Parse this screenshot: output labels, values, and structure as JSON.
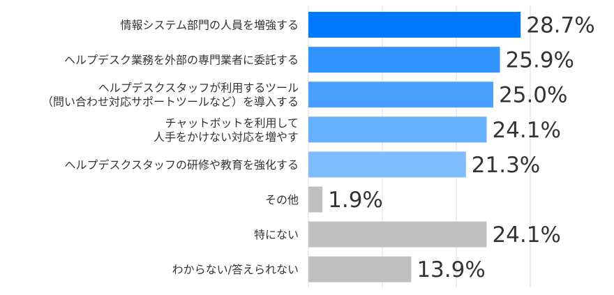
{
  "chart_data": {
    "type": "bar",
    "orientation": "horizontal",
    "categories": [
      [
        "情報システム部門の人員を増強する"
      ],
      [
        "ヘルプデスク業務を外部の専門業者に委託する"
      ],
      [
        "ヘルプデスクスタッフが利用するツール",
        "（問い合わせ対応サポートツールなど）を導入する"
      ],
      [
        "チャットボットを利用して",
        "人手をかけない対応を増やす"
      ],
      [
        "ヘルプデスクスタッフの研修や教育を強化する"
      ],
      [
        "その他"
      ],
      [
        "特にない"
      ],
      [
        "わからない/答えられない"
      ]
    ],
    "values": [
      28.7,
      25.9,
      25.0,
      24.1,
      21.3,
      1.9,
      24.1,
      13.9
    ],
    "data_labels": [
      "28.7%",
      "25.9%",
      "25.0%",
      "24.1%",
      "21.3%",
      "1.9%",
      "24.1%",
      "13.9%"
    ],
    "colors": [
      "#0078ff",
      "#3394ff",
      "#4aa0ff",
      "#66b0ff",
      "#80bdff",
      "#c0c0c0",
      "#c0c0c0",
      "#c0c0c0"
    ],
    "xlim": [
      0,
      30
    ],
    "grid": true,
    "grid_step": 10,
    "unit": "%"
  }
}
